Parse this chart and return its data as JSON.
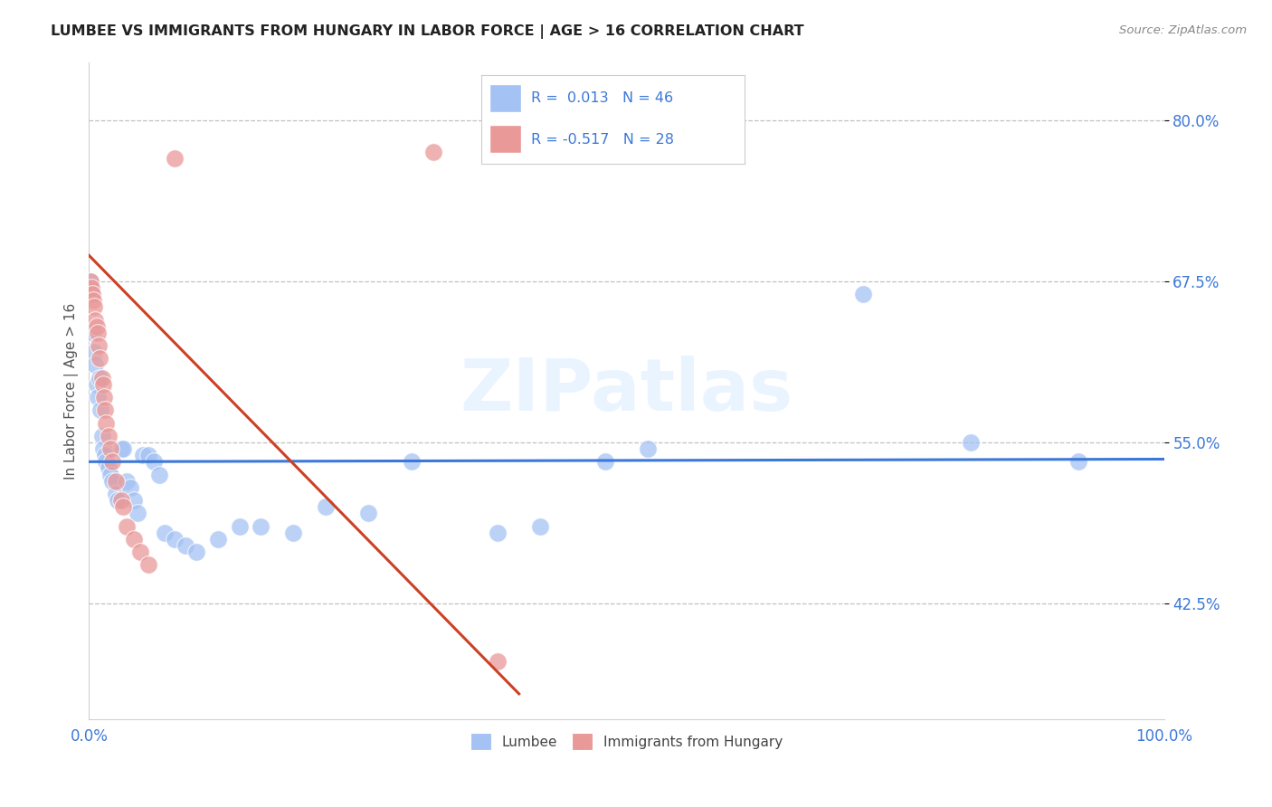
{
  "title": "LUMBEE VS IMMIGRANTS FROM HUNGARY IN LABOR FORCE | AGE > 16 CORRELATION CHART",
  "source": "Source: ZipAtlas.com",
  "ylabel": "In Labor Force | Age > 16",
  "yticks_pct": [
    42.5,
    55.0,
    67.5,
    80.0
  ],
  "xlim": [
    0.0,
    1.0
  ],
  "ylim": [
    0.335,
    0.845
  ],
  "lumbee_R": "0.013",
  "lumbee_N": "46",
  "hungary_R": "-0.517",
  "hungary_N": "28",
  "blue_color": "#a4c2f4",
  "pink_color": "#ea9999",
  "line_blue": "#3c78d8",
  "line_pink": "#cc4125",
  "tick_color": "#3c78d8",
  "legend_label_blue": "Lumbee",
  "legend_label_pink": "Immigrants from Hungary",
  "lumbee_x": [
    0.001,
    0.003,
    0.004,
    0.005,
    0.006,
    0.007,
    0.008,
    0.01,
    0.011,
    0.012,
    0.013,
    0.015,
    0.016,
    0.018,
    0.02,
    0.022,
    0.025,
    0.027,
    0.03,
    0.032,
    0.035,
    0.038,
    0.042,
    0.045,
    0.05,
    0.055,
    0.06,
    0.065,
    0.07,
    0.08,
    0.09,
    0.1,
    0.12,
    0.14,
    0.16,
    0.19,
    0.22,
    0.26,
    0.3,
    0.38,
    0.42,
    0.48,
    0.52,
    0.72,
    0.82,
    0.92
  ],
  "lumbee_y": [
    0.675,
    0.665,
    0.635,
    0.62,
    0.61,
    0.595,
    0.585,
    0.6,
    0.575,
    0.555,
    0.545,
    0.54,
    0.535,
    0.53,
    0.525,
    0.52,
    0.51,
    0.505,
    0.545,
    0.545,
    0.52,
    0.515,
    0.505,
    0.495,
    0.54,
    0.54,
    0.535,
    0.525,
    0.48,
    0.475,
    0.47,
    0.465,
    0.475,
    0.485,
    0.485,
    0.48,
    0.5,
    0.495,
    0.535,
    0.48,
    0.485,
    0.535,
    0.545,
    0.665,
    0.55,
    0.535
  ],
  "hungary_x": [
    0.001,
    0.002,
    0.003,
    0.004,
    0.005,
    0.006,
    0.007,
    0.008,
    0.009,
    0.01,
    0.012,
    0.013,
    0.014,
    0.015,
    0.016,
    0.018,
    0.02,
    0.022,
    0.025,
    0.03,
    0.032,
    0.035,
    0.042,
    0.048,
    0.055,
    0.08,
    0.32,
    0.38
  ],
  "hungary_y": [
    0.675,
    0.67,
    0.665,
    0.66,
    0.655,
    0.645,
    0.64,
    0.635,
    0.625,
    0.615,
    0.6,
    0.595,
    0.585,
    0.575,
    0.565,
    0.555,
    0.545,
    0.535,
    0.52,
    0.505,
    0.5,
    0.485,
    0.475,
    0.465,
    0.455,
    0.77,
    0.775,
    0.38
  ],
  "watermark": "ZIPatlas",
  "background_color": "#ffffff",
  "grid_color": "#c0c0c0"
}
